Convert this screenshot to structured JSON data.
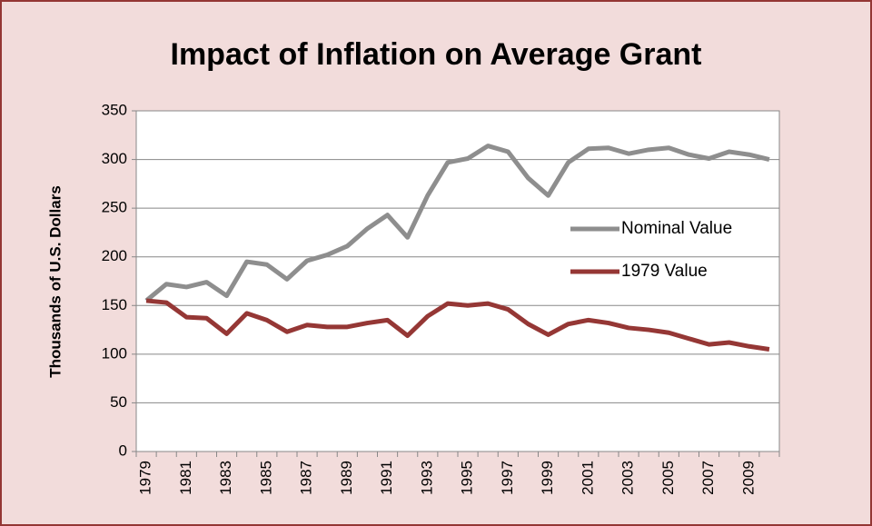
{
  "chart_data": {
    "type": "line",
    "title": "Impact of Inflation on Average Grant",
    "y_label": "Thousands of U.S. Dollars",
    "categories": [
      "1979",
      null,
      "1981",
      null,
      "1983",
      null,
      "1985",
      null,
      "1987",
      null,
      "1989",
      null,
      "1991",
      null,
      "1993",
      null,
      "1995",
      null,
      "1997",
      null,
      "1999",
      null,
      "2001",
      null,
      "2003",
      null,
      "2005",
      null,
      "2007",
      null,
      "2009",
      null
    ],
    "series": [
      {
        "name": "Nominal Value",
        "color": "#8e8e8e",
        "values": [
          155,
          172,
          169,
          174,
          160,
          195,
          192,
          177,
          196,
          202,
          211,
          229,
          243,
          220,
          263,
          297,
          301,
          314,
          308,
          281,
          263,
          297,
          311,
          312,
          306,
          310,
          312,
          305,
          301,
          308,
          305,
          300
        ]
      },
      {
        "name": "1979 Value",
        "color": "#953735",
        "values": [
          155,
          153,
          138,
          137,
          121,
          142,
          135,
          123,
          130,
          128,
          128,
          132,
          135,
          119,
          139,
          152,
          150,
          152,
          146,
          131,
          120,
          131,
          135,
          132,
          127,
          125,
          122,
          116,
          110,
          112,
          108,
          105
        ]
      }
    ],
    "ylim": [
      0,
      350
    ],
    "yticks": [
      0,
      50,
      100,
      150,
      200,
      250,
      300,
      350
    ],
    "grid": true,
    "legend": "right"
  }
}
